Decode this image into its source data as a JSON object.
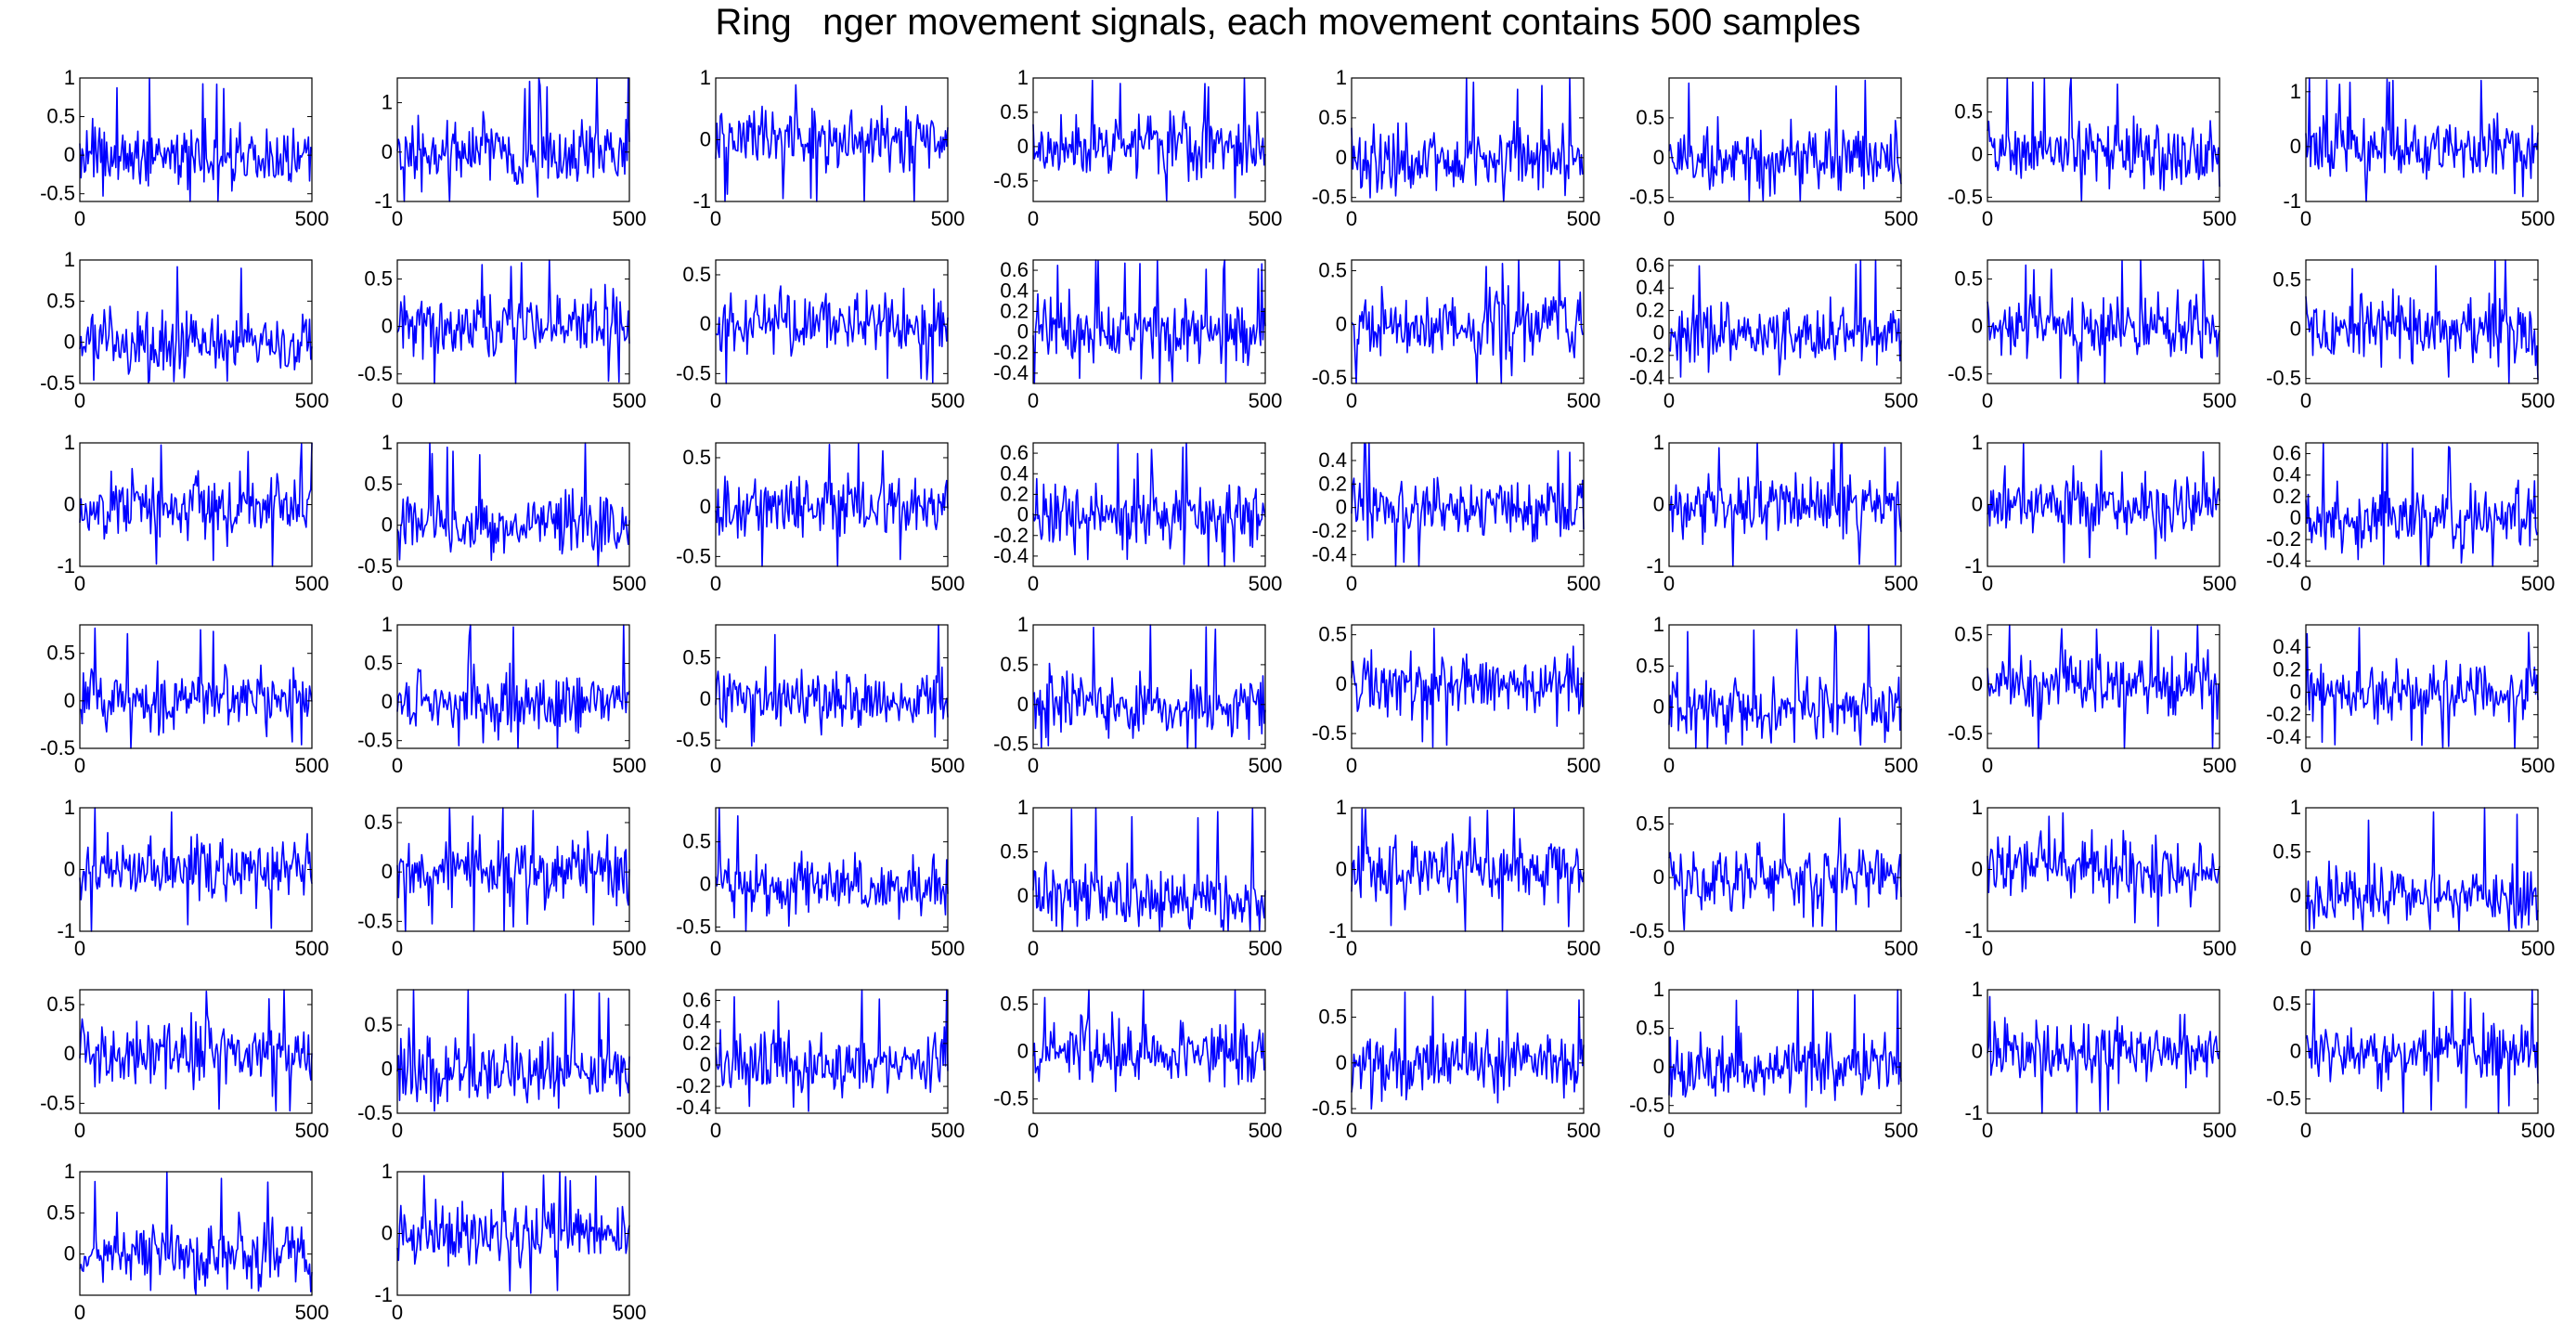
{
  "title": "Ring   nger movement signals, each movement contains 500 samples",
  "colors": {
    "signal": "#0000ff",
    "axes": "#000000",
    "background": "#ffffff"
  },
  "chart_data": {
    "type": "line",
    "layout": {
      "rows": 7,
      "cols": 8
    },
    "samples_per_movement": 500,
    "x_range": [
      0,
      500
    ],
    "x_ticks": [
      "0",
      "500"
    ],
    "panels": [
      {
        "ylim": [
          -0.6,
          1
        ],
        "ticks": [
          {
            "v": 1,
            "t": "1"
          },
          {
            "v": 0.5,
            "t": "0.5"
          },
          {
            "v": 0,
            "t": "0"
          },
          {
            "v": -0.5,
            "t": "-0.5"
          }
        ]
      },
      {
        "ylim": [
          -1,
          1.5
        ],
        "ticks": [
          {
            "v": 1,
            "t": "1"
          },
          {
            "v": 0,
            "t": "0"
          },
          {
            "v": -1,
            "t": "-1"
          }
        ]
      },
      {
        "ylim": [
          -1,
          1
        ],
        "ticks": [
          {
            "v": 1,
            "t": "1"
          },
          {
            "v": 0,
            "t": "0"
          },
          {
            "v": -1,
            "t": "-1"
          }
        ]
      },
      {
        "ylim": [
          -0.8,
          1
        ],
        "ticks": [
          {
            "v": 1,
            "t": "1"
          },
          {
            "v": 0.5,
            "t": "0.5"
          },
          {
            "v": 0,
            "t": "0"
          },
          {
            "v": -0.5,
            "t": "-0.5"
          }
        ]
      },
      {
        "ylim": [
          -0.55,
          1
        ],
        "ticks": [
          {
            "v": 1,
            "t": "1"
          },
          {
            "v": 0.5,
            "t": "0.5"
          },
          {
            "v": 0,
            "t": "0"
          },
          {
            "v": -0.5,
            "t": "-0.5"
          }
        ]
      },
      {
        "ylim": [
          -0.55,
          1
        ],
        "ticks": [
          {
            "v": 0.5,
            "t": "0.5"
          },
          {
            "v": 0,
            "t": "0"
          },
          {
            "v": -0.5,
            "t": "-0.5"
          }
        ]
      },
      {
        "ylim": [
          -0.55,
          0.9
        ],
        "ticks": [
          {
            "v": 0.5,
            "t": "0.5"
          },
          {
            "v": 0,
            "t": "0"
          },
          {
            "v": -0.5,
            "t": "-0.5"
          }
        ]
      },
      {
        "ylim": [
          -1,
          1.25
        ],
        "ticks": [
          {
            "v": 1,
            "t": "1"
          },
          {
            "v": 0,
            "t": "0"
          },
          {
            "v": -1,
            "t": "-1"
          }
        ]
      },
      {
        "ylim": [
          -0.5,
          1
        ],
        "ticks": [
          {
            "v": 1,
            "t": "1"
          },
          {
            "v": 0.5,
            "t": "0.5"
          },
          {
            "v": 0,
            "t": "0"
          },
          {
            "v": -0.5,
            "t": "-0.5"
          }
        ]
      },
      {
        "ylim": [
          -0.6,
          0.7
        ],
        "ticks": [
          {
            "v": 0.5,
            "t": "0.5"
          },
          {
            "v": 0,
            "t": "0"
          },
          {
            "v": -0.5,
            "t": "-0.5"
          }
        ]
      },
      {
        "ylim": [
          -0.6,
          0.65
        ],
        "ticks": [
          {
            "v": 0.5,
            "t": "0.5"
          },
          {
            "v": 0,
            "t": "0"
          },
          {
            "v": -0.5,
            "t": "-0.5"
          }
        ]
      },
      {
        "ylim": [
          -0.5,
          0.7
        ],
        "ticks": [
          {
            "v": 0.6,
            "t": "0.6"
          },
          {
            "v": 0.4,
            "t": "0.4"
          },
          {
            "v": 0.2,
            "t": "0.2"
          },
          {
            "v": 0,
            "t": "0"
          },
          {
            "v": -0.2,
            "t": "-0.2"
          },
          {
            "v": -0.4,
            "t": "-0.4"
          }
        ]
      },
      {
        "ylim": [
          -0.55,
          0.6
        ],
        "ticks": [
          {
            "v": 0.5,
            "t": "0.5"
          },
          {
            "v": 0,
            "t": "0"
          },
          {
            "v": -0.5,
            "t": "-0.5"
          }
        ]
      },
      {
        "ylim": [
          -0.45,
          0.65
        ],
        "ticks": [
          {
            "v": 0.6,
            "t": "0.6"
          },
          {
            "v": 0.4,
            "t": "0.4"
          },
          {
            "v": 0.2,
            "t": "0.2"
          },
          {
            "v": 0,
            "t": "0"
          },
          {
            "v": -0.2,
            "t": "-0.2"
          },
          {
            "v": -0.4,
            "t": "-0.4"
          }
        ]
      },
      {
        "ylim": [
          -0.6,
          0.7
        ],
        "ticks": [
          {
            "v": 0.5,
            "t": "0.5"
          },
          {
            "v": 0,
            "t": "0"
          },
          {
            "v": -0.5,
            "t": "-0.5"
          }
        ]
      },
      {
        "ylim": [
          -0.55,
          0.7
        ],
        "ticks": [
          {
            "v": 0.5,
            "t": "0.5"
          },
          {
            "v": 0,
            "t": "0"
          },
          {
            "v": -0.5,
            "t": "-0.5"
          }
        ]
      },
      {
        "ylim": [
          -1,
          1
        ],
        "ticks": [
          {
            "v": 1,
            "t": "1"
          },
          {
            "v": 0,
            "t": "0"
          },
          {
            "v": -1,
            "t": "-1"
          }
        ]
      },
      {
        "ylim": [
          -0.5,
          1
        ],
        "ticks": [
          {
            "v": 1,
            "t": "1"
          },
          {
            "v": 0.5,
            "t": "0.5"
          },
          {
            "v": 0,
            "t": "0"
          },
          {
            "v": -0.5,
            "t": "-0.5"
          }
        ]
      },
      {
        "ylim": [
          -0.6,
          0.65
        ],
        "ticks": [
          {
            "v": 0.5,
            "t": "0.5"
          },
          {
            "v": 0,
            "t": "0"
          },
          {
            "v": -0.5,
            "t": "-0.5"
          }
        ]
      },
      {
        "ylim": [
          -0.5,
          0.7
        ],
        "ticks": [
          {
            "v": 0.6,
            "t": "0.6"
          },
          {
            "v": 0.4,
            "t": "0.4"
          },
          {
            "v": 0.2,
            "t": "0.2"
          },
          {
            "v": 0,
            "t": "0"
          },
          {
            "v": -0.2,
            "t": "-0.2"
          },
          {
            "v": -0.4,
            "t": "-0.4"
          }
        ]
      },
      {
        "ylim": [
          -0.5,
          0.55
        ],
        "ticks": [
          {
            "v": 0.4,
            "t": "0.4"
          },
          {
            "v": 0.2,
            "t": "0.2"
          },
          {
            "v": 0,
            "t": "0"
          },
          {
            "v": -0.2,
            "t": "-0.2"
          },
          {
            "v": -0.4,
            "t": "-0.4"
          }
        ]
      },
      {
        "ylim": [
          -1,
          1
        ],
        "ticks": [
          {
            "v": 1,
            "t": "1"
          },
          {
            "v": 0,
            "t": "0"
          },
          {
            "v": -1,
            "t": "-1"
          }
        ]
      },
      {
        "ylim": [
          -1,
          1
        ],
        "ticks": [
          {
            "v": 1,
            "t": "1"
          },
          {
            "v": 0,
            "t": "0"
          },
          {
            "v": -1,
            "t": "-1"
          }
        ]
      },
      {
        "ylim": [
          -0.45,
          0.7
        ],
        "ticks": [
          {
            "v": 0.6,
            "t": "0.6"
          },
          {
            "v": 0.4,
            "t": "0.4"
          },
          {
            "v": 0.2,
            "t": "0.2"
          },
          {
            "v": 0,
            "t": "0"
          },
          {
            "v": -0.2,
            "t": "-0.2"
          },
          {
            "v": -0.4,
            "t": "-0.4"
          }
        ]
      },
      {
        "ylim": [
          -0.5,
          0.8
        ],
        "ticks": [
          {
            "v": 0.5,
            "t": "0.5"
          },
          {
            "v": 0,
            "t": "0"
          },
          {
            "v": -0.5,
            "t": "-0.5"
          }
        ]
      },
      {
        "ylim": [
          -0.6,
          1
        ],
        "ticks": [
          {
            "v": 1,
            "t": "1"
          },
          {
            "v": 0.5,
            "t": "0.5"
          },
          {
            "v": 0,
            "t": "0"
          },
          {
            "v": -0.5,
            "t": "-0.5"
          }
        ]
      },
      {
        "ylim": [
          -0.6,
          0.9
        ],
        "ticks": [
          {
            "v": 0.5,
            "t": "0.5"
          },
          {
            "v": 0,
            "t": "0"
          },
          {
            "v": -0.5,
            "t": "-0.5"
          }
        ]
      },
      {
        "ylim": [
          -0.55,
          1
        ],
        "ticks": [
          {
            "v": 1,
            "t": "1"
          },
          {
            "v": 0.5,
            "t": "0.5"
          },
          {
            "v": 0,
            "t": "0"
          },
          {
            "v": -0.5,
            "t": "-0.5"
          }
        ]
      },
      {
        "ylim": [
          -0.65,
          0.6
        ],
        "ticks": [
          {
            "v": 0.5,
            "t": "0.5"
          },
          {
            "v": 0,
            "t": "0"
          },
          {
            "v": -0.5,
            "t": "-0.5"
          }
        ]
      },
      {
        "ylim": [
          -0.5,
          1
        ],
        "ticks": [
          {
            "v": 1,
            "t": "1"
          },
          {
            "v": 0.5,
            "t": "0.5"
          },
          {
            "v": 0,
            "t": "0"
          }
        ]
      },
      {
        "ylim": [
          -0.65,
          0.6
        ],
        "ticks": [
          {
            "v": 0.5,
            "t": "0.5"
          },
          {
            "v": 0,
            "t": "0"
          },
          {
            "v": -0.5,
            "t": "-0.5"
          }
        ]
      },
      {
        "ylim": [
          -0.5,
          0.6
        ],
        "ticks": [
          {
            "v": 0.4,
            "t": "0.4"
          },
          {
            "v": 0.2,
            "t": "0.2"
          },
          {
            "v": 0,
            "t": "0"
          },
          {
            "v": -0.2,
            "t": "-0.2"
          },
          {
            "v": -0.4,
            "t": "-0.4"
          }
        ]
      },
      {
        "ylim": [
          -1,
          1
        ],
        "ticks": [
          {
            "v": 1,
            "t": "1"
          },
          {
            "v": 0,
            "t": "0"
          },
          {
            "v": -1,
            "t": "-1"
          }
        ]
      },
      {
        "ylim": [
          -0.6,
          0.65
        ],
        "ticks": [
          {
            "v": 0.5,
            "t": "0.5"
          },
          {
            "v": 0,
            "t": "0"
          },
          {
            "v": -0.5,
            "t": "-0.5"
          }
        ]
      },
      {
        "ylim": [
          -0.55,
          0.9
        ],
        "ticks": [
          {
            "v": 0.5,
            "t": "0.5"
          },
          {
            "v": 0,
            "t": "0"
          },
          {
            "v": -0.5,
            "t": "-0.5"
          }
        ]
      },
      {
        "ylim": [
          -0.4,
          1
        ],
        "ticks": [
          {
            "v": 1,
            "t": "1"
          },
          {
            "v": 0.5,
            "t": "0.5"
          },
          {
            "v": 0,
            "t": "0"
          }
        ]
      },
      {
        "ylim": [
          -1,
          1
        ],
        "ticks": [
          {
            "v": 1,
            "t": "1"
          },
          {
            "v": 0,
            "t": "0"
          },
          {
            "v": -1,
            "t": "-1"
          }
        ]
      },
      {
        "ylim": [
          -0.5,
          0.65
        ],
        "ticks": [
          {
            "v": 0.5,
            "t": "0.5"
          },
          {
            "v": 0,
            "t": "0"
          },
          {
            "v": -0.5,
            "t": "-0.5"
          }
        ]
      },
      {
        "ylim": [
          -1,
          1
        ],
        "ticks": [
          {
            "v": 1,
            "t": "1"
          },
          {
            "v": 0,
            "t": "0"
          },
          {
            "v": -1,
            "t": "-1"
          }
        ]
      },
      {
        "ylim": [
          -0.4,
          1
        ],
        "ticks": [
          {
            "v": 1,
            "t": "1"
          },
          {
            "v": 0.5,
            "t": "0.5"
          },
          {
            "v": 0,
            "t": "0"
          }
        ]
      },
      {
        "ylim": [
          -0.6,
          0.65
        ],
        "ticks": [
          {
            "v": 0.5,
            "t": "0.5"
          },
          {
            "v": 0,
            "t": "0"
          },
          {
            "v": -0.5,
            "t": "-0.5"
          }
        ]
      },
      {
        "ylim": [
          -0.5,
          0.9
        ],
        "ticks": [
          {
            "v": 0.5,
            "t": "0.5"
          },
          {
            "v": 0,
            "t": "0"
          },
          {
            "v": -0.5,
            "t": "-0.5"
          }
        ]
      },
      {
        "ylim": [
          -0.45,
          0.7
        ],
        "ticks": [
          {
            "v": 0.6,
            "t": "0.6"
          },
          {
            "v": 0.4,
            "t": "0.4"
          },
          {
            "v": 0.2,
            "t": "0.2"
          },
          {
            "v": 0,
            "t": "0"
          },
          {
            "v": -0.2,
            "t": "-0.2"
          },
          {
            "v": -0.4,
            "t": "-0.4"
          }
        ]
      },
      {
        "ylim": [
          -0.65,
          0.65
        ],
        "ticks": [
          {
            "v": 0.5,
            "t": "0.5"
          },
          {
            "v": 0,
            "t": "0"
          },
          {
            "v": -0.5,
            "t": "-0.5"
          }
        ]
      },
      {
        "ylim": [
          -0.55,
          0.8
        ],
        "ticks": [
          {
            "v": 0.5,
            "t": "0.5"
          },
          {
            "v": 0,
            "t": "0"
          },
          {
            "v": -0.5,
            "t": "-0.5"
          }
        ]
      },
      {
        "ylim": [
          -0.6,
          1
        ],
        "ticks": [
          {
            "v": 1,
            "t": "1"
          },
          {
            "v": 0.5,
            "t": "0.5"
          },
          {
            "v": 0,
            "t": "0"
          },
          {
            "v": -0.5,
            "t": "-0.5"
          }
        ]
      },
      {
        "ylim": [
          -1,
          1
        ],
        "ticks": [
          {
            "v": 1,
            "t": "1"
          },
          {
            "v": 0,
            "t": "0"
          },
          {
            "v": -1,
            "t": "-1"
          }
        ]
      },
      {
        "ylim": [
          -0.65,
          0.65
        ],
        "ticks": [
          {
            "v": 0.5,
            "t": "0.5"
          },
          {
            "v": 0,
            "t": "0"
          },
          {
            "v": -0.5,
            "t": "-0.5"
          }
        ]
      },
      {
        "ylim": [
          -0.5,
          1
        ],
        "ticks": [
          {
            "v": 1,
            "t": "1"
          },
          {
            "v": 0.5,
            "t": "0.5"
          },
          {
            "v": 0,
            "t": "0"
          }
        ]
      },
      {
        "ylim": [
          -1,
          1
        ],
        "ticks": [
          {
            "v": 1,
            "t": "1"
          },
          {
            "v": 0,
            "t": "0"
          },
          {
            "v": -1,
            "t": "-1"
          }
        ]
      }
    ]
  }
}
